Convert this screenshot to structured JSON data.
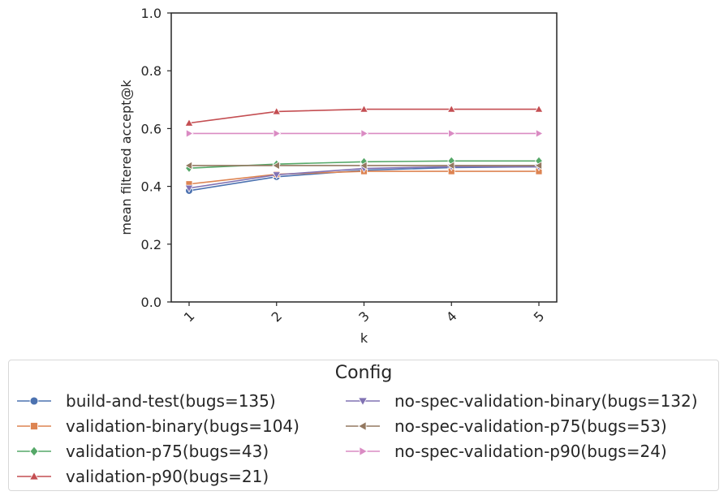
{
  "chart_data": {
    "type": "line",
    "xlabel": "k",
    "ylabel": "mean filtered accept@k",
    "x": [
      1,
      2,
      3,
      4,
      5
    ],
    "xticks": [
      "1",
      "2",
      "3",
      "4",
      "5"
    ],
    "ylim": [
      0.0,
      1.0
    ],
    "yticks": [
      "0.0",
      "0.2",
      "0.4",
      "0.6",
      "0.8",
      "1.0"
    ],
    "grid": false,
    "legend": {
      "title": "Config",
      "placement": "bottom-center",
      "columns": 2
    },
    "series": [
      {
        "name": "build-and-test(bugs=135)",
        "marker": "circle",
        "color": "#4c72b0",
        "values": [
          0.385,
          0.433,
          0.456,
          0.465,
          0.468
        ]
      },
      {
        "name": "validation-binary(bugs=104)",
        "marker": "square",
        "color": "#dd8452",
        "values": [
          0.408,
          0.442,
          0.452,
          0.452,
          0.452
        ]
      },
      {
        "name": "validation-p75(bugs=43)",
        "marker": "diamond",
        "color": "#55a868",
        "values": [
          0.463,
          0.477,
          0.485,
          0.488,
          0.488
        ]
      },
      {
        "name": "validation-p90(bugs=21)",
        "marker": "triangle-up",
        "color": "#c44e52",
        "values": [
          0.619,
          0.659,
          0.667,
          0.667,
          0.667
        ]
      },
      {
        "name": "no-spec-validation-binary(bugs=132)",
        "marker": "triangle-down",
        "color": "#8172b3",
        "values": [
          0.394,
          0.44,
          0.462,
          0.468,
          0.468
        ]
      },
      {
        "name": "no-spec-validation-p75(bugs=53)",
        "marker": "triangle-left",
        "color": "#937860",
        "values": [
          0.472,
          0.472,
          0.472,
          0.472,
          0.472
        ]
      },
      {
        "name": "no-spec-validation-p90(bugs=24)",
        "marker": "triangle-right",
        "color": "#da8bc3",
        "values": [
          0.583,
          0.583,
          0.583,
          0.583,
          0.583
        ]
      }
    ]
  }
}
